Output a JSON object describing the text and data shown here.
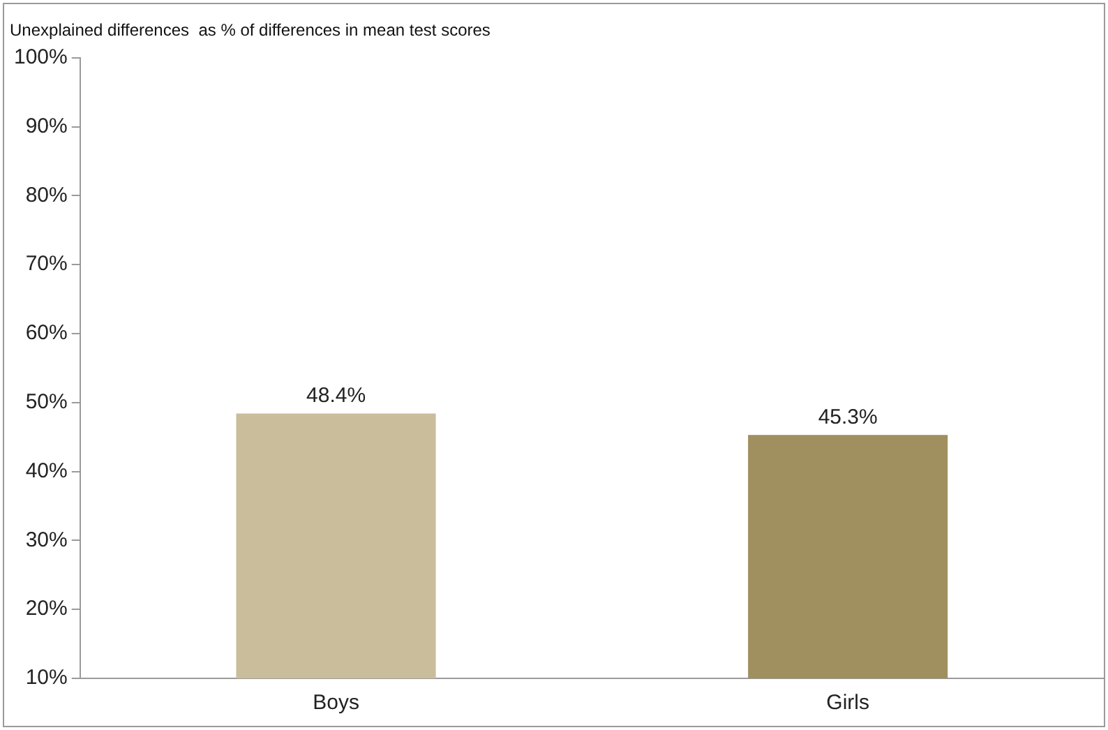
{
  "chart_data": {
    "type": "bar",
    "title": "Unexplained differences  as % of differences in mean test scores",
    "categories": [
      "Boys",
      "Girls"
    ],
    "values": [
      48.4,
      45.3
    ],
    "colors": [
      "#c9bd9c",
      "#a08f5f"
    ],
    "value_labels": [
      "48.4%",
      "45.3%"
    ],
    "ylim": [
      10,
      100
    ],
    "yticks": [
      {
        "value": 10,
        "label": "10%"
      },
      {
        "value": 20,
        "label": "20%"
      },
      {
        "value": 30,
        "label": "30%"
      },
      {
        "value": 40,
        "label": "40%"
      },
      {
        "value": 50,
        "label": "50%"
      },
      {
        "value": 60,
        "label": "60%"
      },
      {
        "value": 70,
        "label": "70%"
      },
      {
        "value": 80,
        "label": "80%"
      },
      {
        "value": 90,
        "label": "90%"
      },
      {
        "value": 100,
        "label": "100%"
      }
    ],
    "grid": false,
    "legend": false
  }
}
